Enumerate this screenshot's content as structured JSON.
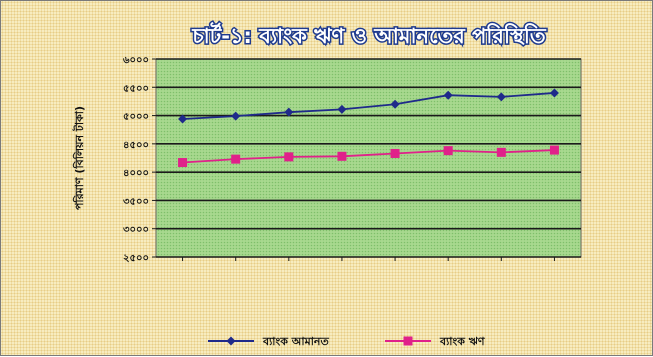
{
  "chart_data": {
    "type": "line",
    "title": "চার্ট-১: ব্যাংক ঋণ ও আমানতের পরিস্থিতি",
    "ylabel": "পরিমাণ (বিলিয়ন টাকা)",
    "xlabel": "",
    "ylim": [
      2500,
      6000
    ],
    "yticks": [
      2500,
      3000,
      3500,
      4000,
      4500,
      5000,
      5500,
      6000
    ],
    "ytick_labels": [
      "২৫০০",
      "৩০০০",
      "৩৫০০",
      "৪০০০",
      "৪৫০০",
      "৫০০০",
      "৫৫০০",
      "৬০০০"
    ],
    "categories": [
      "",
      "",
      "",
      "",
      "",
      "",
      "",
      ""
    ],
    "series": [
      {
        "name": "ব্যাংক আমানত",
        "color": "#1f2a8a",
        "marker": "diamond",
        "values": [
          4940,
          4990,
          5060,
          5110,
          5200,
          5360,
          5330,
          5400
        ]
      },
      {
        "name": "ব্যাংক ঋণ",
        "color": "#e0218a",
        "marker": "square",
        "values": [
          4170,
          4230,
          4270,
          4280,
          4330,
          4380,
          4350,
          4390
        ]
      }
    ],
    "grid": true,
    "legend": "bottom",
    "plot_background": "#a8d98f"
  }
}
